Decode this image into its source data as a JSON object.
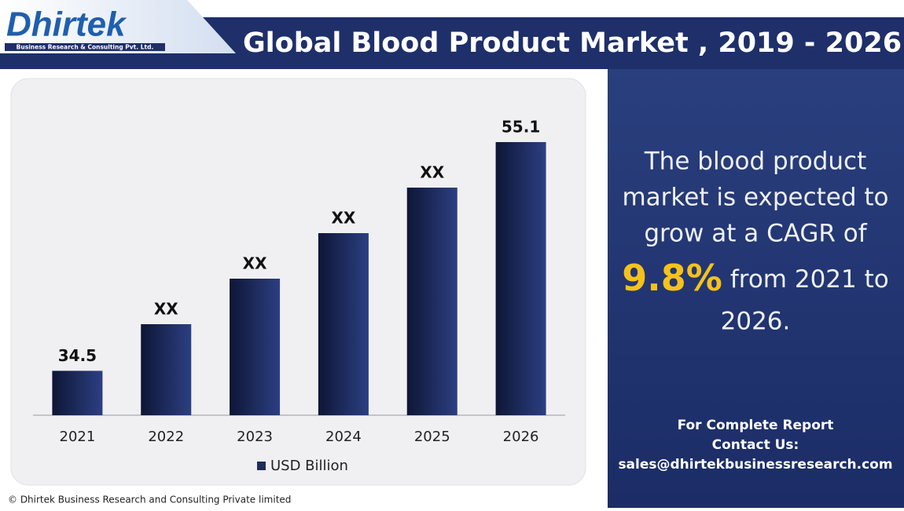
{
  "logo": {
    "name": "Dhirtek",
    "tagline": "Business Research & Consulting Pvt. Ltd."
  },
  "chart_data": {
    "type": "bar",
    "title": "Global Blood Product Market , 2019 - 2026",
    "categories": [
      "2021",
      "2022",
      "2023",
      "2024",
      "2025",
      "2026"
    ],
    "series": [
      {
        "name": "USD Billion",
        "color": "#1f2d5c",
        "values": [
          34.5,
          38.7,
          42.8,
          46.9,
          51.0,
          55.1
        ],
        "value_labels": [
          "34.5",
          "XX",
          "XX",
          "XX",
          "XX",
          "55.1"
        ]
      }
    ],
    "ylim": [
      30.5,
      58
    ],
    "legend": "bottom"
  },
  "side": {
    "lines_before": [
      "The blood product",
      "market is expected to",
      "grow at a CAGR of"
    ],
    "highlight": "9.8%",
    "after_highlight": "from 2021 to",
    "last_line": "2026."
  },
  "contact": {
    "lines": [
      "For Complete Report",
      "Contact Us:",
      "sales@dhirtekbusinessresearch.com"
    ]
  },
  "footer": "© Dhirtek Business Research and Consulting Private limited"
}
